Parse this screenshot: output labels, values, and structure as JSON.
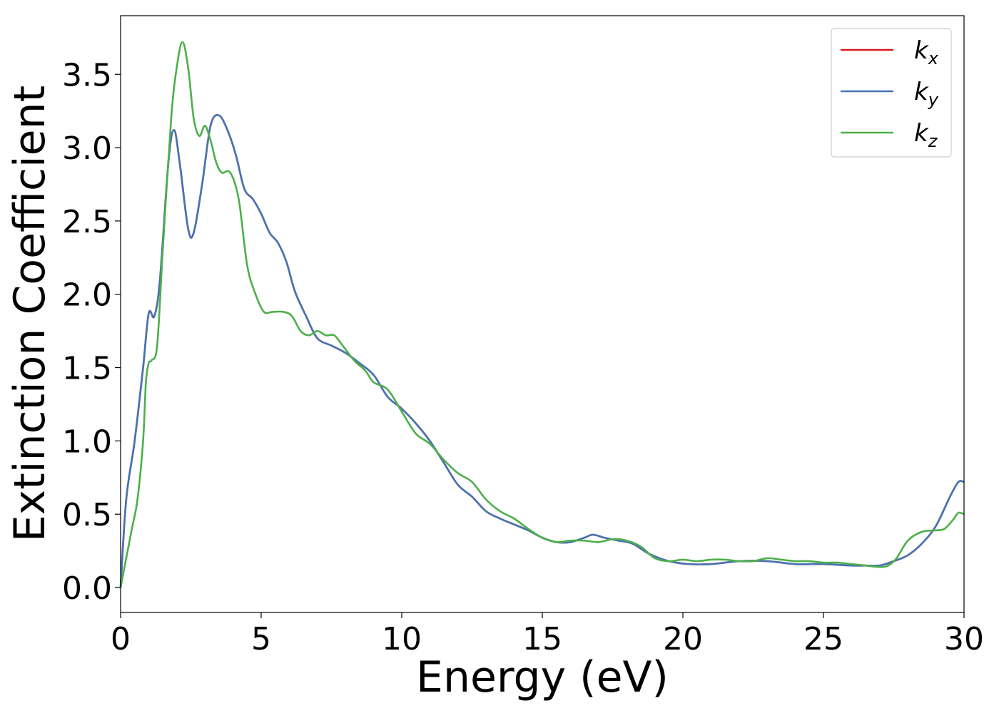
{
  "chart_data": {
    "type": "line",
    "title": "",
    "xlabel": "Energy (eV)",
    "ylabel": "Extinction Coefficient",
    "xlim": [
      0,
      30
    ],
    "ylim": [
      -0.17,
      3.9
    ],
    "xticks": [
      0,
      5,
      10,
      15,
      20,
      25,
      30
    ],
    "xtick_labels": [
      "0",
      "5",
      "10",
      "15",
      "20",
      "25",
      "30"
    ],
    "yticks": [
      0.0,
      0.5,
      1.0,
      1.5,
      2.0,
      2.5,
      3.0,
      3.5
    ],
    "ytick_labels": [
      "0.0",
      "0.5",
      "1.0",
      "1.5",
      "2.0",
      "2.5",
      "3.0",
      "3.5"
    ],
    "grid": false,
    "legend_position": "top-right",
    "series": [
      {
        "name": "k_x",
        "legend_base": "k",
        "legend_sub": "x",
        "color": "#d7191c",
        "x": [
          0,
          0.2,
          0.5,
          0.8,
          1.0,
          1.2,
          1.4,
          1.7,
          1.9,
          2.1,
          2.4,
          2.6,
          2.9,
          3.2,
          3.5,
          3.8,
          4.1,
          4.4,
          4.7,
          5.0,
          5.3,
          5.6,
          5.9,
          6.2,
          6.6,
          7.0,
          7.5,
          8.0,
          8.5,
          9.0,
          9.5,
          10.0,
          10.5,
          11.0,
          11.5,
          12.0,
          12.5,
          13.0,
          13.5,
          14.0,
          14.5,
          15.0,
          15.5,
          16.0,
          16.5,
          16.8,
          17.2,
          17.7,
          18.2,
          18.8,
          19.5,
          20.2,
          21.0,
          22.0,
          23.0,
          24.0,
          25.0,
          26.0,
          26.5,
          27.0,
          27.5,
          28.0,
          28.5,
          29.0,
          29.5,
          29.8,
          30.0
        ],
        "y": [
          0.0,
          0.6,
          1.0,
          1.5,
          1.87,
          1.85,
          2.1,
          2.9,
          3.12,
          2.9,
          2.45,
          2.42,
          2.75,
          3.15,
          3.22,
          3.12,
          2.95,
          2.72,
          2.65,
          2.55,
          2.42,
          2.35,
          2.22,
          2.02,
          1.85,
          1.7,
          1.65,
          1.6,
          1.53,
          1.45,
          1.3,
          1.22,
          1.12,
          1.0,
          0.85,
          0.7,
          0.62,
          0.52,
          0.47,
          0.43,
          0.39,
          0.34,
          0.31,
          0.31,
          0.34,
          0.36,
          0.34,
          0.32,
          0.3,
          0.23,
          0.18,
          0.16,
          0.16,
          0.18,
          0.18,
          0.16,
          0.16,
          0.15,
          0.15,
          0.15,
          0.18,
          0.22,
          0.3,
          0.42,
          0.62,
          0.72,
          0.72
        ]
      },
      {
        "name": "k_y",
        "legend_base": "k",
        "legend_sub": "y",
        "color": "#4575b4",
        "x": [
          0,
          0.2,
          0.5,
          0.8,
          1.0,
          1.2,
          1.4,
          1.7,
          1.9,
          2.1,
          2.4,
          2.6,
          2.9,
          3.2,
          3.5,
          3.8,
          4.1,
          4.4,
          4.7,
          5.0,
          5.3,
          5.6,
          5.9,
          6.2,
          6.6,
          7.0,
          7.5,
          8.0,
          8.5,
          9.0,
          9.5,
          10.0,
          10.5,
          11.0,
          11.5,
          12.0,
          12.5,
          13.0,
          13.5,
          14.0,
          14.5,
          15.0,
          15.5,
          16.0,
          16.5,
          16.8,
          17.2,
          17.7,
          18.2,
          18.8,
          19.5,
          20.2,
          21.0,
          22.0,
          23.0,
          24.0,
          25.0,
          26.0,
          26.5,
          27.0,
          27.5,
          28.0,
          28.5,
          29.0,
          29.5,
          29.8,
          30.0
        ],
        "y": [
          0.0,
          0.6,
          1.0,
          1.5,
          1.87,
          1.85,
          2.1,
          2.9,
          3.12,
          2.9,
          2.45,
          2.42,
          2.75,
          3.15,
          3.22,
          3.12,
          2.95,
          2.72,
          2.65,
          2.55,
          2.42,
          2.35,
          2.22,
          2.02,
          1.85,
          1.7,
          1.65,
          1.6,
          1.53,
          1.45,
          1.3,
          1.22,
          1.12,
          1.0,
          0.85,
          0.7,
          0.62,
          0.52,
          0.47,
          0.43,
          0.39,
          0.34,
          0.31,
          0.31,
          0.34,
          0.36,
          0.34,
          0.32,
          0.3,
          0.23,
          0.18,
          0.16,
          0.16,
          0.18,
          0.18,
          0.16,
          0.16,
          0.15,
          0.15,
          0.15,
          0.18,
          0.22,
          0.3,
          0.42,
          0.62,
          0.72,
          0.72
        ]
      },
      {
        "name": "k_z",
        "legend_base": "k",
        "legend_sub": "z",
        "color": "#4daf4a",
        "x": [
          0,
          0.2,
          0.4,
          0.6,
          0.8,
          0.9,
          1.0,
          1.1,
          1.3,
          1.5,
          1.8,
          2.0,
          2.2,
          2.4,
          2.6,
          2.8,
          3.0,
          3.2,
          3.4,
          3.6,
          3.9,
          4.2,
          4.5,
          4.8,
          5.1,
          5.4,
          5.8,
          6.1,
          6.4,
          6.7,
          7.0,
          7.3,
          7.6,
          7.9,
          8.3,
          8.7,
          9.0,
          9.5,
          10.0,
          10.5,
          11.0,
          11.5,
          12.0,
          12.5,
          13.0,
          13.5,
          14.0,
          14.5,
          15.0,
          15.5,
          16.0,
          16.5,
          17.0,
          17.5,
          18.0,
          18.5,
          19.0,
          19.5,
          20.0,
          20.5,
          21.0,
          21.5,
          22.0,
          22.5,
          23.0,
          23.5,
          24.0,
          24.5,
          25.0,
          25.5,
          26.0,
          26.5,
          27.0,
          27.3,
          27.6,
          28.0,
          28.5,
          29.0,
          29.3,
          29.6,
          29.8,
          30.0
        ],
        "y": [
          0.0,
          0.2,
          0.4,
          0.6,
          1.0,
          1.4,
          1.53,
          1.55,
          1.65,
          2.3,
          3.2,
          3.55,
          3.72,
          3.55,
          3.2,
          3.08,
          3.15,
          3.05,
          2.9,
          2.83,
          2.83,
          2.65,
          2.2,
          2.0,
          1.88,
          1.88,
          1.88,
          1.85,
          1.75,
          1.72,
          1.75,
          1.72,
          1.72,
          1.65,
          1.55,
          1.48,
          1.4,
          1.35,
          1.2,
          1.05,
          0.98,
          0.87,
          0.78,
          0.72,
          0.6,
          0.52,
          0.47,
          0.4,
          0.34,
          0.31,
          0.32,
          0.32,
          0.31,
          0.33,
          0.32,
          0.28,
          0.2,
          0.18,
          0.19,
          0.18,
          0.19,
          0.19,
          0.18,
          0.18,
          0.2,
          0.19,
          0.18,
          0.18,
          0.17,
          0.17,
          0.16,
          0.15,
          0.14,
          0.15,
          0.2,
          0.32,
          0.38,
          0.39,
          0.4,
          0.46,
          0.51,
          0.5
        ]
      }
    ]
  }
}
